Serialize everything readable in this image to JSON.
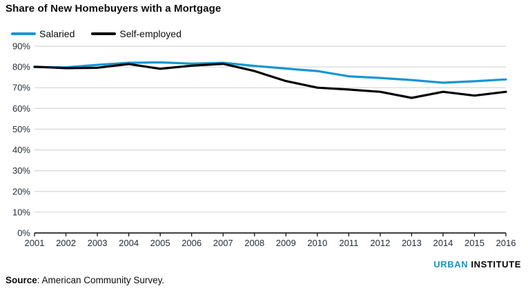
{
  "title": "Share of New Homebuyers with a Mortgage",
  "legend": {
    "items": [
      {
        "label": "Salaried",
        "color": "#1696d2"
      },
      {
        "label": "Self-employed",
        "color": "#000000"
      }
    ]
  },
  "footer": {
    "logo_word1": "URBAN",
    "logo_word2": "INSTITUTE",
    "logo_word1_color": "#1696d2",
    "logo_word2_color": "#000000",
    "source_label": "Source",
    "source_rest": ": American Community Survey."
  },
  "colors": {
    "accent_blue": "#1696d2",
    "series_black": "#000000",
    "gridline": "#d8d8d8",
    "axis_line": "#000000",
    "tick_label": "#252e38"
  },
  "chart_data": {
    "type": "line",
    "x": [
      2001,
      2002,
      2003,
      2004,
      2005,
      2006,
      2007,
      2008,
      2009,
      2010,
      2011,
      2012,
      2013,
      2014,
      2015,
      2016
    ],
    "series": [
      {
        "name": "Salaried",
        "color": "#1696d2",
        "values": [
          79.9,
          79.8,
          81.0,
          82.0,
          82.2,
          81.6,
          82.0,
          80.5,
          79.2,
          78.0,
          75.5,
          74.7,
          73.7,
          72.4,
          73.1,
          74.0
        ]
      },
      {
        "name": "Self-employed",
        "color": "#000000",
        "values": [
          80.1,
          79.4,
          79.6,
          81.4,
          79.1,
          80.6,
          81.5,
          78.0,
          73.2,
          70.0,
          69.1,
          68.0,
          65.1,
          68.0,
          66.2,
          68.0
        ]
      }
    ],
    "title": "Share of New Homebuyers with a Mortgage",
    "xlabel": "",
    "ylabel": "",
    "ylim": [
      0,
      90
    ],
    "ytick_step": 10,
    "ytick_suffix": "%",
    "grid": "horizontal",
    "legend_position": "top-left"
  }
}
